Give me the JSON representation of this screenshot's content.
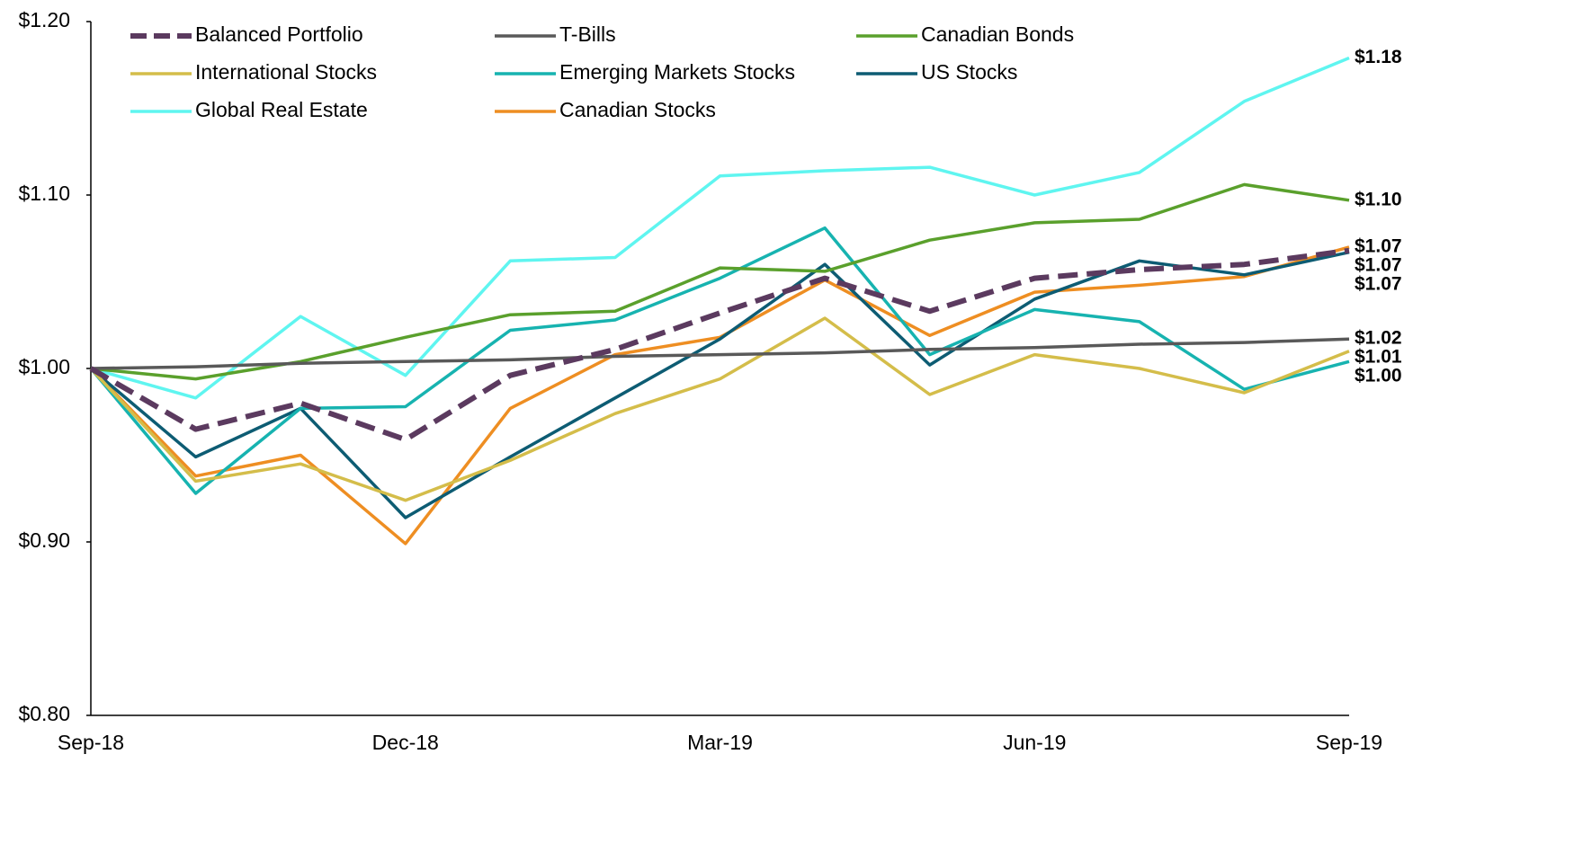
{
  "chart_data": {
    "type": "line",
    "categories": [
      "Sep-18",
      null,
      null,
      "Dec-18",
      null,
      null,
      "Mar-19",
      null,
      null,
      "Jun-19",
      null,
      null,
      "Sep-19"
    ],
    "ylim": [
      0.8,
      1.2
    ],
    "yticks": [
      {
        "value": 0.8,
        "label": "$0.80"
      },
      {
        "value": 0.9,
        "label": "$0.90"
      },
      {
        "value": 1.0,
        "label": "$1.00"
      },
      {
        "value": 1.1,
        "label": "$1.10"
      },
      {
        "value": 1.2,
        "label": "$1.20"
      }
    ],
    "grid": false,
    "legend": "top-left",
    "series": [
      {
        "name": "Balanced Portfolio",
        "color": "#5b3a5f",
        "dashed": true,
        "values": [
          1.0,
          0.965,
          0.98,
          0.959,
          0.996,
          1.011,
          1.032,
          1.052,
          1.033,
          1.052,
          1.057,
          1.06,
          1.068
        ],
        "value_labels": [
          null,
          null,
          null,
          null,
          null,
          null,
          null,
          null,
          null,
          null,
          null,
          null,
          "$1.07"
        ]
      },
      {
        "name": "T-Bills",
        "color": "#595959",
        "values": [
          1.0,
          1.001,
          1.003,
          1.004,
          1.005,
          1.007,
          1.008,
          1.009,
          1.011,
          1.012,
          1.014,
          1.015,
          1.017
        ],
        "value_labels": [
          null,
          null,
          null,
          null,
          null,
          null,
          null,
          null,
          null,
          null,
          null,
          null,
          "$1.02"
        ]
      },
      {
        "name": "Canadian Bonds",
        "color": "#5aa02c",
        "values": [
          1.0,
          0.994,
          1.004,
          1.018,
          1.031,
          1.033,
          1.058,
          1.056,
          1.074,
          1.084,
          1.086,
          1.106,
          1.097
        ],
        "value_labels": [
          null,
          null,
          null,
          null,
          null,
          null,
          null,
          null,
          null,
          null,
          null,
          null,
          "$1.10"
        ]
      },
      {
        "name": "International Stocks",
        "color": "#d4bd4a",
        "values": [
          1.0,
          0.935,
          0.945,
          0.924,
          0.947,
          0.974,
          0.994,
          1.029,
          0.985,
          1.008,
          1.0,
          0.986,
          1.01
        ],
        "value_labels": [
          null,
          null,
          null,
          null,
          null,
          null,
          null,
          null,
          null,
          null,
          null,
          null,
          "$1.01"
        ]
      },
      {
        "name": "Emerging Markets Stocks",
        "color": "#17b3b0",
        "values": [
          1.0,
          0.928,
          0.977,
          0.978,
          1.022,
          1.028,
          1.052,
          1.081,
          1.008,
          1.034,
          1.027,
          0.988,
          1.004
        ],
        "value_labels": [
          null,
          null,
          null,
          null,
          null,
          null,
          null,
          null,
          null,
          null,
          null,
          null,
          "$1.00"
        ]
      },
      {
        "name": "US Stocks",
        "color": "#0d5c73",
        "values": [
          1.0,
          0.949,
          0.977,
          0.914,
          0.949,
          0.983,
          1.017,
          1.06,
          1.002,
          1.04,
          1.062,
          1.054,
          1.067
        ],
        "value_labels": [
          null,
          null,
          null,
          null,
          null,
          null,
          null,
          null,
          null,
          null,
          null,
          null,
          "$1.07"
        ]
      },
      {
        "name": "Global Real Estate",
        "color": "#5ff5f0",
        "values": [
          1.0,
          0.983,
          1.03,
          0.996,
          1.062,
          1.064,
          1.111,
          1.114,
          1.116,
          1.1,
          1.113,
          1.154,
          1.179
        ],
        "value_labels": [
          null,
          null,
          null,
          null,
          null,
          null,
          null,
          null,
          null,
          null,
          null,
          null,
          "$1.18"
        ]
      },
      {
        "name": "Canadian Stocks",
        "color": "#ee8e22",
        "values": [
          1.0,
          0.938,
          0.95,
          0.899,
          0.977,
          1.008,
          1.018,
          1.051,
          1.019,
          1.044,
          1.048,
          1.053,
          1.07
        ],
        "value_labels": [
          null,
          null,
          null,
          null,
          null,
          null,
          null,
          null,
          null,
          null,
          null,
          null,
          "$1.07"
        ]
      }
    ]
  }
}
